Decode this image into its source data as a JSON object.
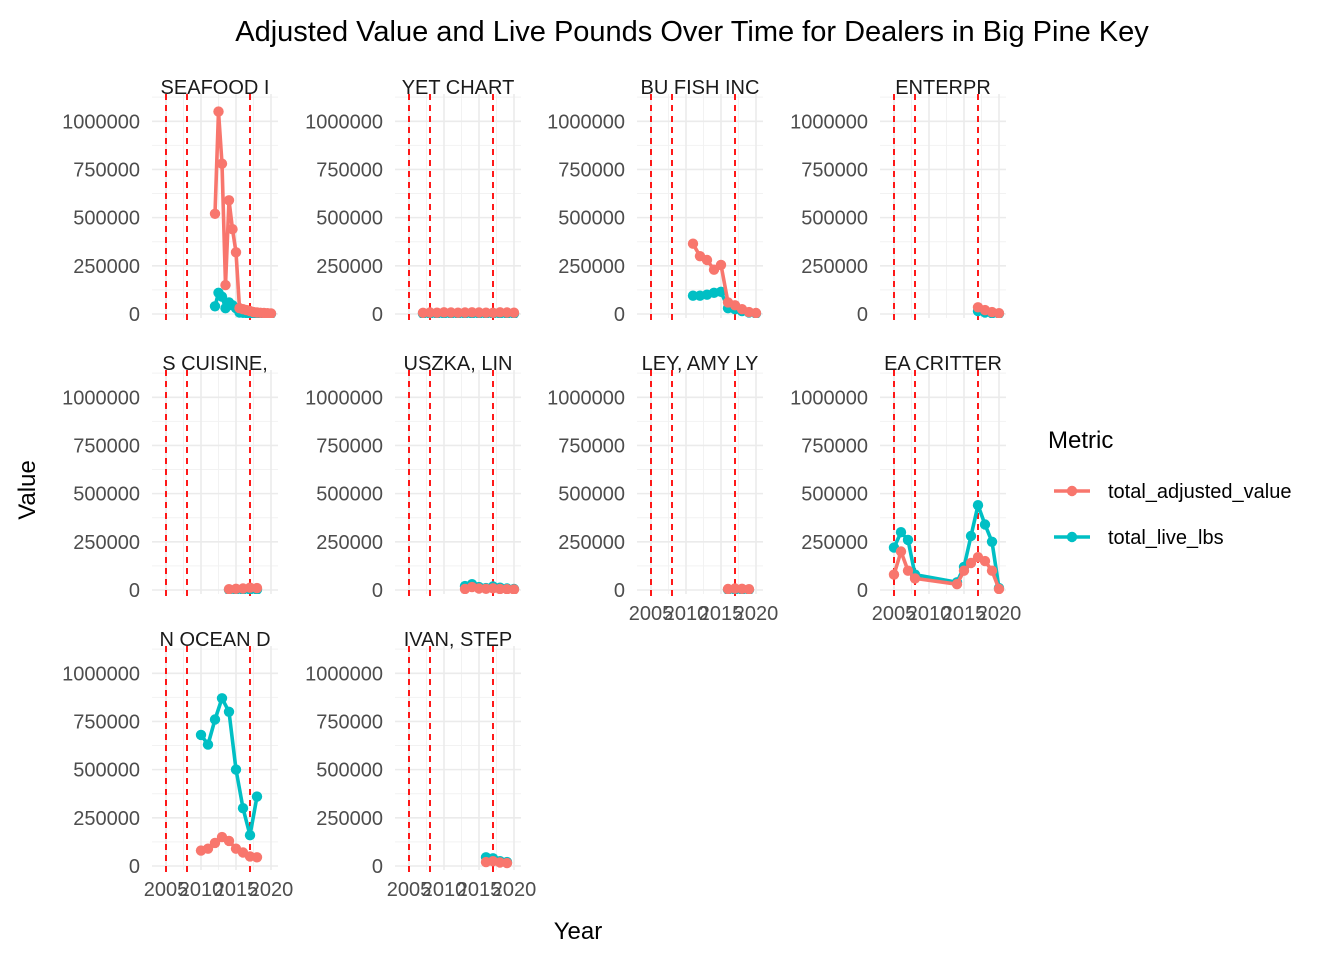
{
  "chart_data": {
    "type": "line",
    "title": "Adjusted Value and Live Pounds Over Time for Dealers in Big Pine Key",
    "xlabel": "Year",
    "ylabel": "Value",
    "xlim": [
      2003,
      2021
    ],
    "ylim": [
      0,
      1100000
    ],
    "y_ticks": [
      0,
      250000,
      500000,
      750000,
      1000000
    ],
    "y_tick_labels": [
      "0",
      "250000",
      "500000",
      "750000",
      "1000000"
    ],
    "x_ticks": [
      2005,
      2010,
      2015,
      2020
    ],
    "x_tick_labels": [
      "2005",
      "2010",
      "2015",
      "2020"
    ],
    "vlines": [
      2005,
      2008,
      2017
    ],
    "grid": true,
    "colors": {
      "total_adjusted_value": "#F8766D",
      "total_live_lbs": "#00BFC4",
      "vline": "#FF0000"
    },
    "legend": {
      "title": "Metric",
      "position": "right",
      "entries": [
        "total_adjusted_value",
        "total_live_lbs"
      ]
    },
    "panels": [
      {
        "strip": "SEAFOOD I",
        "show_x_axis": false,
        "series": [
          {
            "name": "total_adjusted_value",
            "x": [
              2012,
              2012.5,
              2013,
              2013.5,
              2014,
              2014.5,
              2015,
              2015.5,
              2016,
              2016.5,
              2017,
              2017.5,
              2018,
              2018.5,
              2019,
              2019.5,
              2020
            ],
            "y": [
              520000,
              1050000,
              780000,
              150000,
              590000,
              440000,
              320000,
              30000,
              25000,
              20000,
              15000,
              10000,
              8000,
              6000,
              5000,
              4000,
              3000
            ]
          },
          {
            "name": "total_live_lbs",
            "x": [
              2012,
              2012.5,
              2013,
              2013.5,
              2014,
              2014.5,
              2015,
              2015.5,
              2016,
              2016.5,
              2017,
              2017.5,
              2018,
              2018.5,
              2019,
              2019.5,
              2020
            ],
            "y": [
              40000,
              110000,
              90000,
              30000,
              60000,
              45000,
              30000,
              8000,
              6000,
              5000,
              4000,
              3000,
              2500,
              2000,
              1500,
              1000,
              800
            ]
          }
        ]
      },
      {
        "strip": "YET CHART",
        "show_x_axis": false,
        "series": [
          {
            "name": "total_adjusted_value",
            "x": [
              2007,
              2008,
              2009,
              2010,
              2011,
              2012,
              2013,
              2014,
              2015,
              2016,
              2017,
              2018,
              2019,
              2020
            ],
            "y": [
              6000,
              8000,
              7000,
              9000,
              8000,
              7000,
              8000,
              9000,
              8000,
              7000,
              6000,
              9000,
              8000,
              7000
            ]
          },
          {
            "name": "total_live_lbs",
            "x": [
              2007,
              2008,
              2009,
              2010,
              2011,
              2012,
              2013,
              2014,
              2015,
              2016,
              2017,
              2018,
              2019,
              2020
            ],
            "y": [
              2000,
              2500,
              2200,
              3000,
              2500,
              2200,
              2500,
              3000,
              2600,
              2200,
              2000,
              3000,
              2600,
              2200
            ]
          }
        ]
      },
      {
        "strip": "BU FISH INC",
        "show_x_axis": false,
        "series": [
          {
            "name": "total_adjusted_value",
            "x": [
              2011,
              2012,
              2013,
              2014,
              2015,
              2016,
              2017,
              2018,
              2019,
              2020
            ],
            "y": [
              365000,
              300000,
              280000,
              230000,
              255000,
              60000,
              45000,
              25000,
              10000,
              5000
            ]
          },
          {
            "name": "total_live_lbs",
            "x": [
              2011,
              2012,
              2013,
              2014,
              2015,
              2016,
              2017,
              2018,
              2019,
              2020
            ],
            "y": [
              95000,
              95000,
              100000,
              110000,
              115000,
              30000,
              25000,
              15000,
              8000,
              3000
            ]
          }
        ]
      },
      {
        "strip": "ENTERPR",
        "show_x_axis": false,
        "series": [
          {
            "name": "total_adjusted_value",
            "x": [
              2017,
              2018,
              2019,
              2020
            ],
            "y": [
              35000,
              20000,
              10000,
              4000
            ]
          },
          {
            "name": "total_live_lbs",
            "x": [
              2017,
              2018,
              2019,
              2020
            ],
            "y": [
              15000,
              8000,
              4000,
              2000
            ]
          }
        ]
      },
      {
        "strip": "S CUISINE,",
        "show_x_axis": false,
        "series": [
          {
            "name": "total_adjusted_value",
            "x": [
              2014,
              2015,
              2016,
              2017,
              2018
            ],
            "y": [
              4000,
              6000,
              8000,
              12000,
              10000
            ]
          },
          {
            "name": "total_live_lbs",
            "x": [
              2014,
              2015,
              2016,
              2017,
              2018
            ],
            "y": [
              1000,
              1500,
              2000,
              3000,
              2500
            ]
          }
        ]
      },
      {
        "strip": "USZKA, LIN",
        "show_x_axis": false,
        "series": [
          {
            "name": "total_adjusted_value",
            "x": [
              2013,
              2014,
              2015,
              2016,
              2017,
              2018,
              2019,
              2020
            ],
            "y": [
              5000,
              15000,
              8000,
              6000,
              9000,
              5000,
              4000,
              3000
            ]
          },
          {
            "name": "total_live_lbs",
            "x": [
              2013,
              2014,
              2015,
              2016,
              2017,
              2018,
              2019,
              2020
            ],
            "y": [
              20000,
              30000,
              15000,
              10000,
              18000,
              12000,
              8000,
              5000
            ]
          }
        ]
      },
      {
        "strip": "LEY, AMY LY",
        "show_x_axis": true,
        "series": [
          {
            "name": "total_adjusted_value",
            "x": [
              2016,
              2017,
              2018,
              2019
            ],
            "y": [
              5000,
              8000,
              6000,
              4000
            ]
          },
          {
            "name": "total_live_lbs",
            "x": [
              2016,
              2017,
              2018,
              2019
            ],
            "y": [
              2000,
              3000,
              2500,
              1500
            ]
          }
        ]
      },
      {
        "strip": "EA CRITTER",
        "show_x_axis": true,
        "series": [
          {
            "name": "total_adjusted_value",
            "x": [
              2005,
              2006,
              2007,
              2008,
              2014,
              2015,
              2016,
              2017,
              2018,
              2019,
              2020
            ],
            "y": [
              80000,
              200000,
              100000,
              60000,
              30000,
              100000,
              140000,
              170000,
              150000,
              100000,
              5000
            ]
          },
          {
            "name": "total_live_lbs",
            "x": [
              2005,
              2006,
              2007,
              2008,
              2014,
              2015,
              2016,
              2017,
              2018,
              2019,
              2020
            ],
            "y": [
              220000,
              300000,
              260000,
              80000,
              40000,
              120000,
              280000,
              440000,
              340000,
              250000,
              10000
            ]
          }
        ]
      },
      {
        "strip": "N OCEAN D",
        "show_x_axis": true,
        "series": [
          {
            "name": "total_adjusted_value",
            "x": [
              2010,
              2011,
              2012,
              2013,
              2014,
              2015,
              2016,
              2017,
              2018
            ],
            "y": [
              80000,
              90000,
              120000,
              150000,
              130000,
              90000,
              70000,
              50000,
              45000
            ]
          },
          {
            "name": "total_live_lbs",
            "x": [
              2010,
              2011,
              2012,
              2013,
              2014,
              2015,
              2016,
              2017,
              2018
            ],
            "y": [
              680000,
              630000,
              760000,
              870000,
              800000,
              500000,
              300000,
              160000,
              360000
            ]
          }
        ]
      },
      {
        "strip": "IVAN, STEP",
        "show_x_axis": true,
        "series": [
          {
            "name": "total_adjusted_value",
            "x": [
              2016,
              2017,
              2018,
              2019
            ],
            "y": [
              20000,
              25000,
              18000,
              15000
            ]
          },
          {
            "name": "total_live_lbs",
            "x": [
              2016,
              2017,
              2018,
              2019
            ],
            "y": [
              45000,
              40000,
              25000,
              20000
            ]
          }
        ]
      }
    ]
  }
}
